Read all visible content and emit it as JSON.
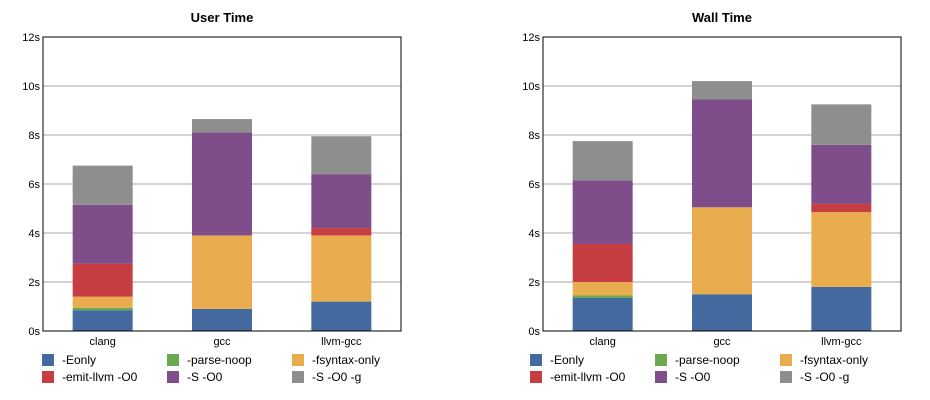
{
  "chart_data": [
    {
      "type": "bar",
      "stacked": true,
      "title": "User Time",
      "categories": [
        "clang",
        "gcc",
        "llvm-gcc"
      ],
      "ylim": [
        0,
        12
      ],
      "yticks": [
        "0s",
        "2s",
        "4s",
        "6s",
        "8s",
        "10s",
        "12s"
      ],
      "grid": true,
      "legend_position": "bottom",
      "series": [
        {
          "name": "-Eonly",
          "color": "#44699e",
          "values": [
            0.85,
            0.9,
            1.2
          ]
        },
        {
          "name": "-parse-noop",
          "color": "#6aa84f",
          "values": [
            0.1,
            0.0,
            0.0
          ]
        },
        {
          "name": "-fsyntax-only",
          "color": "#e9ac4e",
          "values": [
            0.45,
            3.0,
            2.7
          ]
        },
        {
          "name": "-emit-llvm -O0",
          "color": "#c73e42",
          "values": [
            1.35,
            0.0,
            0.3
          ]
        },
        {
          "name": "-S -O0",
          "color": "#7f4e8a",
          "values": [
            2.4,
            4.2,
            2.2
          ]
        },
        {
          "name": "-S -O0 -g",
          "color": "#8e8e8e",
          "values": [
            1.6,
            0.55,
            1.55
          ]
        }
      ]
    },
    {
      "type": "bar",
      "stacked": true,
      "title": "Wall Time",
      "categories": [
        "clang",
        "gcc",
        "llvm-gcc"
      ],
      "ylim": [
        0,
        12
      ],
      "yticks": [
        "0s",
        "2s",
        "4s",
        "6s",
        "8s",
        "10s",
        "12s"
      ],
      "grid": true,
      "legend_position": "bottom",
      "series": [
        {
          "name": "-Eonly",
          "color": "#44699e",
          "values": [
            1.35,
            1.5,
            1.8
          ]
        },
        {
          "name": "-parse-noop",
          "color": "#6aa84f",
          "values": [
            0.1,
            0.0,
            0.0
          ]
        },
        {
          "name": "-fsyntax-only",
          "color": "#e9ac4e",
          "values": [
            0.55,
            3.55,
            3.05
          ]
        },
        {
          "name": "-emit-llvm -O0",
          "color": "#c73e42",
          "values": [
            1.55,
            0.0,
            0.35
          ]
        },
        {
          "name": "-S -O0",
          "color": "#7f4e8a",
          "values": [
            2.6,
            4.4,
            2.4
          ]
        },
        {
          "name": "-S -O0 -g",
          "color": "#8e8e8e",
          "values": [
            1.6,
            0.75,
            1.65
          ]
        }
      ]
    }
  ],
  "legend": [
    {
      "label": "-Eonly",
      "color": "#44699e"
    },
    {
      "label": "-parse-noop",
      "color": "#6aa84f"
    },
    {
      "label": "-fsyntax-only",
      "color": "#e9ac4e"
    },
    {
      "label": "-emit-llvm -O0",
      "color": "#c73e42"
    },
    {
      "label": "-S -O0",
      "color": "#7f4e8a"
    },
    {
      "label": "-S -O0 -g",
      "color": "#8e8e8e"
    }
  ]
}
